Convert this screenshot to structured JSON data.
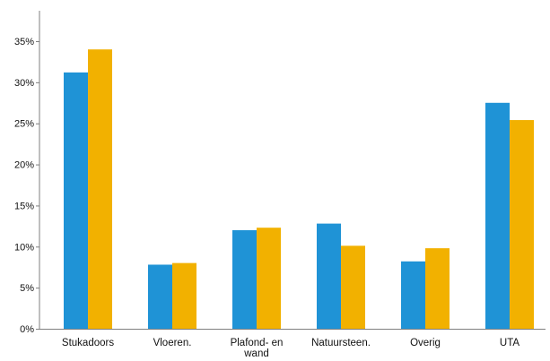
{
  "chart_data": {
    "type": "bar",
    "categories": [
      "Stukadoors",
      "Vloeren.",
      "Plafond- en wand",
      "Natuursteen.",
      "Overig",
      "UTA"
    ],
    "category_label_lines": [
      [
        "Stukadoors"
      ],
      [
        "Vloeren."
      ],
      [
        "Plafond- en",
        "wand"
      ],
      [
        "Natuursteen."
      ],
      [
        "Overig"
      ],
      [
        "UTA"
      ]
    ],
    "series": [
      {
        "values": [
          31.2,
          7.8,
          12.0,
          12.8,
          8.2,
          27.5
        ],
        "color": "#1f93d6"
      },
      {
        "values": [
          34.0,
          8.0,
          12.3,
          10.1,
          9.8,
          25.4
        ],
        "color": "#f2b100"
      }
    ],
    "ylim": [
      0,
      35
    ],
    "yticks": [
      0,
      5,
      10,
      15,
      20,
      25,
      30,
      35
    ],
    "ytick_labels": [
      "0%",
      "5%",
      "10%",
      "15%",
      "20%",
      "25%",
      "30%",
      "35%"
    ],
    "title": "",
    "xlabel": "",
    "ylabel": "",
    "grid": false,
    "legend": "none"
  }
}
